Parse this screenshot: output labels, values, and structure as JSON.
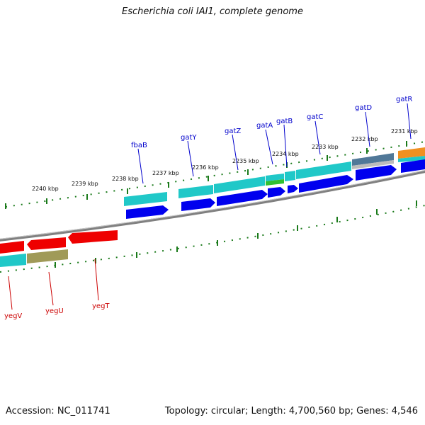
{
  "title": "Escherichia coli IAI1, complete genome",
  "footer": {
    "accession": "Accession: NC_011741",
    "topology": "Topology: circular; Length: 4,700,560 bp; Genes: 4,546"
  },
  "colors": {
    "backbone": "#808080",
    "tick": "#1a7a1a",
    "plus_label": "#0000cc",
    "minus_label": "#cc0000",
    "cds_blue": "#0000ee",
    "cds_red": "#ee0000",
    "teal": "#20c8c8",
    "steel": "#507898",
    "green": "#30c030",
    "orange": "#f09020",
    "olive": "#a09a58"
  },
  "kbp_labels": [
    "2231 kbp",
    "2232 kbp",
    "2233 kbp",
    "2234 kbp",
    "2235 kbp",
    "2236 kbp",
    "2237 kbp",
    "2238 kbp",
    "2239 kbp",
    "2240 kbp"
  ],
  "plus_genes": [
    "gatR",
    "gatD",
    "gatC",
    "gatB",
    "gatA",
    "gatZ",
    "gatY",
    "fbaB"
  ],
  "minus_genes": [
    "yegT",
    "yegU",
    "yegV"
  ]
}
